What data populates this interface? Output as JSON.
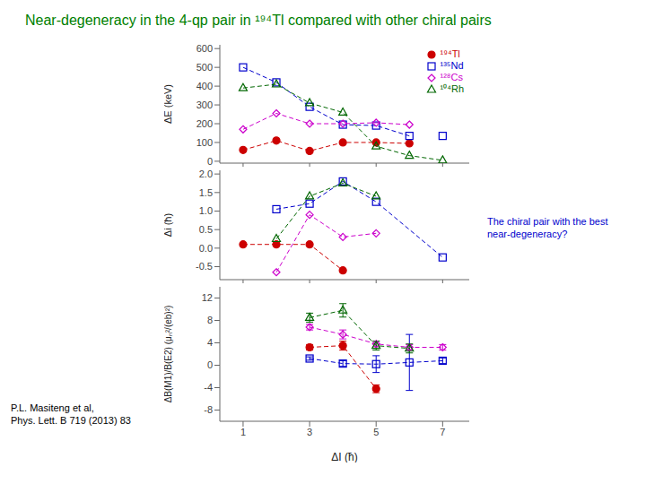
{
  "chart_data": [
    {
      "type": "line",
      "title": {
        "text": "Near-degeneracy in the 4-qp pair in ¹⁹⁴Tl compared with other chiral pairs",
        "color": "#008000"
      },
      "annotations": [
        {
          "text": "The chiral pair with the best\nnear-degeneracy?",
          "color": "#0000cd"
        },
        {
          "text": "P.L. Masiteng et al,\nPhys. Lett. B 719 (2013) 83",
          "color": "#000000"
        }
      ],
      "ylabel": "ΔE (keV)",
      "xlim": [
        0.3,
        7.8
      ],
      "xticks": [
        1,
        3,
        5,
        7
      ],
      "ylim": [
        -10,
        620
      ],
      "yticks": [
        0,
        100,
        200,
        300,
        400,
        500,
        600
      ],
      "tick_labels": "y",
      "legend": "upper right",
      "series": [
        {
          "name": "¹⁹⁴Tl",
          "color": "#cc0000",
          "marker": "circle",
          "line_style": "dashed",
          "x": [
            1,
            2,
            3,
            4,
            5,
            6
          ],
          "values": [
            60,
            110,
            55,
            100,
            100,
            95
          ]
        },
        {
          "name": "¹³⁵Nd",
          "color": "#0000cc",
          "marker": "square-open",
          "line_style": "dashed",
          "x": [
            1,
            2,
            3,
            4,
            5,
            6
          ],
          "values": [
            500,
            420,
            290,
            195,
            190,
            135
          ]
        },
        {
          "name": "¹²⁸Cs",
          "color": "#cc00cc",
          "marker": "diamond-open",
          "line_style": "dashed",
          "x": [
            1,
            2,
            3,
            4,
            5,
            6
          ],
          "values": [
            170,
            255,
            200,
            200,
            205,
            195
          ]
        },
        {
          "name": "¹⁰⁴Rh",
          "color": "#006600",
          "marker": "triangle-open",
          "line_style": "dashed",
          "x": [
            1,
            2,
            3,
            4,
            5,
            6,
            7
          ],
          "values": [
            390,
            410,
            310,
            260,
            80,
            30,
            5
          ]
        },
        {
          "name": "¹³⁵Nd",
          "type": "scatter",
          "color": "#0000cc",
          "marker": "square-open",
          "x": [
            7
          ],
          "values": [
            135
          ]
        }
      ]
    },
    {
      "type": "line",
      "ylabel": "Δi (ħ)",
      "xlim": [
        0.3,
        7.8
      ],
      "xticks": [
        1,
        3,
        5,
        7
      ],
      "ylim": [
        -0.85,
        2.1
      ],
      "yticks": [
        -0.5,
        {
          "value": 0,
          "label": "0.0"
        },
        0.5,
        {
          "value": 1,
          "label": "1.0"
        },
        1.5,
        {
          "value": 2,
          "label": "2.0"
        }
      ],
      "tick_labels": "y",
      "series": [
        {
          "name": "¹⁹⁴Tl",
          "color": "#cc0000",
          "marker": "circle",
          "line_style": "dashed",
          "x": [
            1,
            2,
            3,
            4
          ],
          "values": [
            0.1,
            0.1,
            0.1,
            -0.6
          ]
        },
        {
          "name": "¹³⁵Nd",
          "color": "#0000cc",
          "marker": "square-open",
          "line_style": "dashed",
          "x": [
            2,
            3,
            4,
            5,
            7
          ],
          "values": [
            1.05,
            1.2,
            1.8,
            1.25,
            -0.25
          ]
        },
        {
          "name": "¹²⁸Cs",
          "color": "#cc00cc",
          "marker": "diamond-open",
          "line_style": "dashed",
          "x": [
            2,
            3,
            4,
            5
          ],
          "values": [
            -0.65,
            0.9,
            0.3,
            0.4
          ]
        },
        {
          "name": "¹⁰⁴Rh",
          "color": "#006600",
          "marker": "triangle-open",
          "line_style": "dashed",
          "x": [
            2,
            3,
            4,
            5
          ],
          "values": [
            0.25,
            1.4,
            1.75,
            1.4
          ]
        }
      ]
    },
    {
      "type": "line",
      "ylabel": "ΔB(M1)/B(E2) (μₙ²/(eb)²)",
      "xlabel": "ΔI (ħ)",
      "xlim": [
        0.3,
        7.8
      ],
      "xticks": [
        1,
        3,
        5,
        7
      ],
      "ylim": [
        -10,
        14
      ],
      "yticks": [
        -8,
        -4,
        0,
        4,
        8,
        12
      ],
      "series": [
        {
          "name": "¹⁹⁴Tl",
          "color": "#cc0000",
          "marker": "circle",
          "line_style": "dashed",
          "x": [
            3,
            4,
            5
          ],
          "values": [
            3.2,
            3.5,
            -4.2
          ],
          "errors": [
            0.5,
            0.8,
            0.7
          ]
        },
        {
          "name": "¹³⁵Nd",
          "color": "#0000cc",
          "marker": "square-open",
          "line_style": "dashed",
          "x": [
            3,
            4,
            5,
            6,
            7
          ],
          "values": [
            1.2,
            0.3,
            0.2,
            0.5,
            0.8
          ],
          "errors": [
            0.3,
            0.5,
            1.5,
            5.0,
            0.5
          ]
        },
        {
          "name": "¹²⁸Cs",
          "color": "#cc00cc",
          "marker": "diamond-open",
          "line_style": "dashed",
          "x": [
            3,
            4,
            5,
            6,
            7
          ],
          "values": [
            6.8,
            5.5,
            3.8,
            3.2,
            3.2
          ],
          "errors": [
            0.5,
            0.8,
            0.5,
            0.5,
            0.5
          ]
        },
        {
          "name": "¹⁰⁴Rh",
          "color": "#006600",
          "marker": "triangle-open",
          "line_style": "dashed",
          "x": [
            3,
            4,
            5,
            6
          ],
          "values": [
            8.5,
            9.8,
            3.5,
            3.0
          ],
          "errors": [
            0.8,
            1.2,
            0.8,
            0.8
          ]
        }
      ]
    }
  ]
}
